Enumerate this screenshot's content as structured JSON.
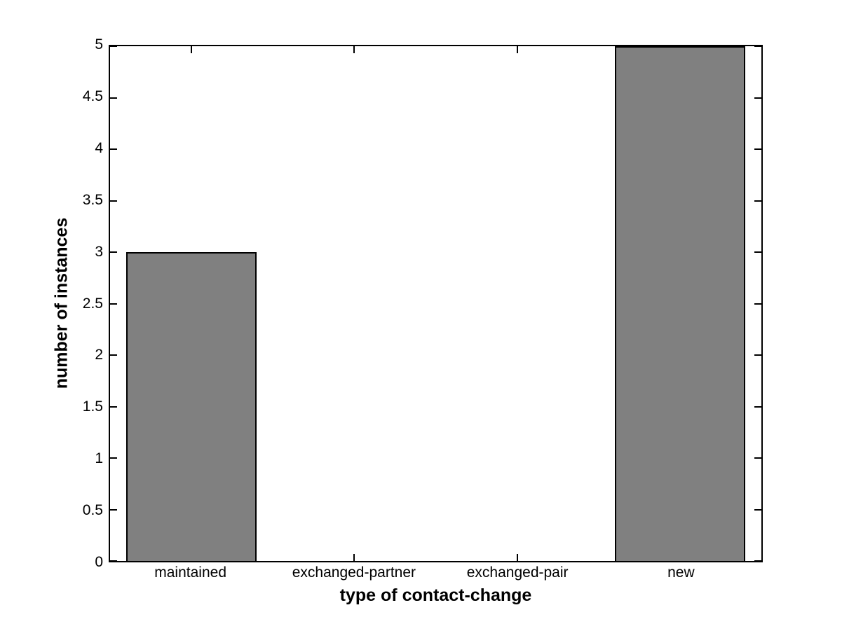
{
  "figure": {
    "background": "#ffffff",
    "axis_color": "#000000",
    "text_color": "#000000"
  },
  "chart_data": {
    "type": "bar",
    "title": "",
    "categories": [
      "maintained",
      "exchanged-partner",
      "exchanged-pair",
      "new"
    ],
    "values": [
      3,
      0,
      0,
      5
    ],
    "xlabel": "type of contact-change",
    "ylabel": "number of instances",
    "xlim": [
      0.5,
      4.5
    ],
    "ylim": [
      0,
      5
    ],
    "bar_centers": [
      1,
      2,
      3,
      4
    ],
    "bar_width": 0.8,
    "bar_color": "#808080",
    "bar_edge_color": "#000000",
    "ytick_values": [
      0,
      0.5,
      1,
      1.5,
      2,
      2.5,
      3,
      3.5,
      4,
      4.5,
      5
    ],
    "ytick_labels": [
      "0",
      "0.5",
      "1",
      "1.5",
      "2",
      "2.5",
      "3",
      "3.5",
      "4",
      "4.5",
      "5"
    ],
    "grid": false,
    "legend": null,
    "tick_direction": "in"
  }
}
